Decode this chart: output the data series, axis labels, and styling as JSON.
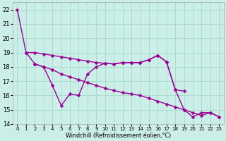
{
  "xlabel": "Windchill (Refroidissement éolien,°C)",
  "bg_color": "#cceee8",
  "grid_color": "#aaddcc",
  "line_color": "#990099",
  "x_all": [
    0,
    1,
    2,
    3,
    4,
    5,
    6,
    7,
    8,
    9,
    10,
    11,
    12,
    13,
    14,
    15,
    16,
    17,
    18,
    19,
    20,
    21,
    22,
    23
  ],
  "line_top": [
    null,
    19.0,
    19.0,
    18.9,
    18.8,
    18.7,
    18.6,
    18.5,
    18.4,
    18.3,
    18.25,
    18.2,
    18.3,
    18.3,
    18.3,
    18.5,
    18.8,
    18.35,
    16.4,
    16.3,
    null,
    null,
    null,
    null
  ],
  "line_zigzag": [
    22.0,
    19.0,
    18.2,
    18.0,
    16.7,
    15.3,
    16.1,
    16.0,
    17.5,
    18.0,
    18.25,
    18.2,
    18.3,
    18.3,
    18.3,
    18.5,
    18.8,
    18.35,
    16.4,
    15.0,
    14.5,
    14.8,
    14.8,
    14.5
  ],
  "line_trend": [
    null,
    null,
    18.2,
    18.0,
    17.8,
    17.5,
    17.3,
    17.1,
    16.9,
    16.7,
    16.5,
    16.35,
    16.2,
    16.1,
    16.0,
    15.8,
    15.6,
    15.4,
    15.2,
    15.0,
    14.8,
    14.6,
    14.8,
    14.5
  ],
  "ylim": [
    14,
    22.5
  ],
  "yticks": [
    14,
    15,
    16,
    17,
    18,
    19,
    20,
    21,
    22
  ],
  "xlim": [
    -0.5,
    23.5
  ]
}
